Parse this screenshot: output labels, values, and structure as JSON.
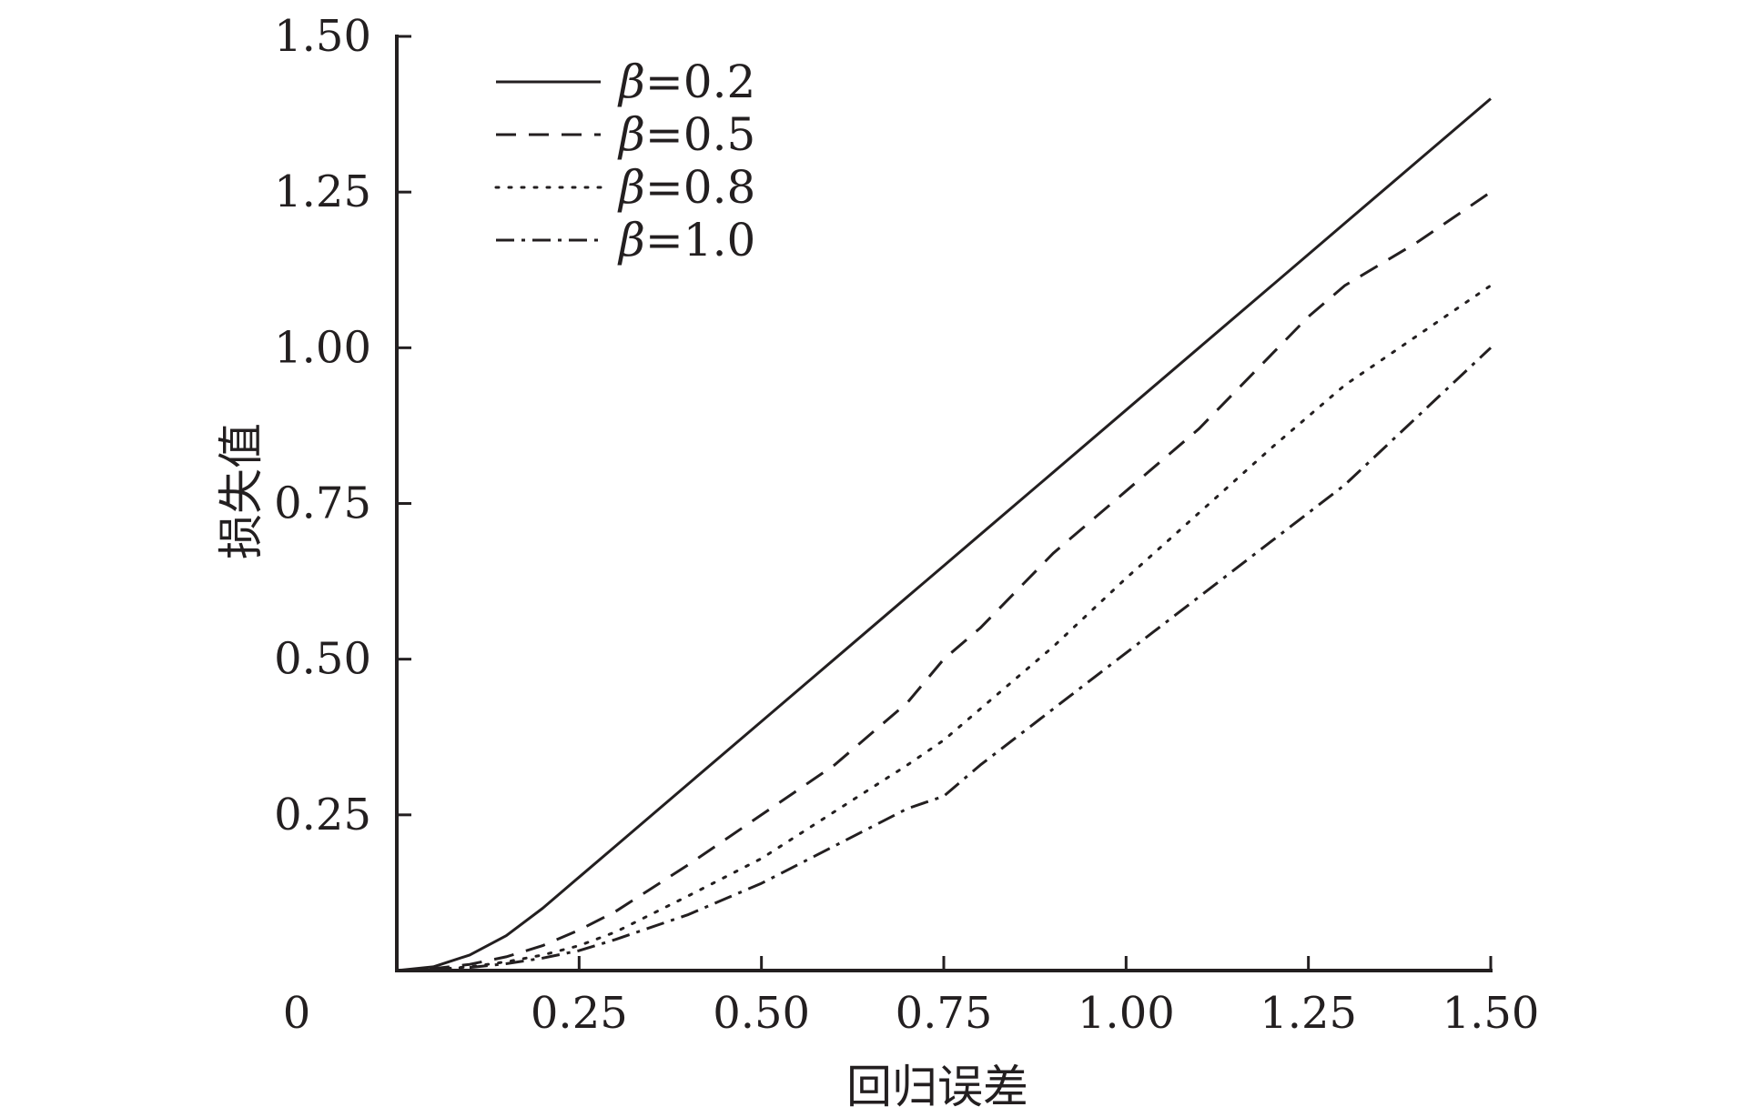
{
  "chart_data": {
    "type": "line",
    "title": "",
    "xlabel": "回归误差",
    "ylabel": "损失值",
    "xlim": [
      0,
      1.5
    ],
    "ylim": [
      0,
      1.5
    ],
    "origin_label": "0",
    "x_ticks": [
      0.25,
      0.5,
      0.75,
      1.0,
      1.25,
      1.5
    ],
    "x_tick_labels": [
      "0.25",
      "0.50",
      "0.75",
      "1.00",
      "1.25",
      "1.50"
    ],
    "y_ticks": [
      0.25,
      0.5,
      0.75,
      1.0,
      1.25,
      1.5
    ],
    "y_tick_labels": [
      "0.25",
      "0.50",
      "0.75",
      "1.00",
      "1.25",
      "1.50"
    ],
    "grid": false,
    "legend_position": "top-left",
    "x": [
      0,
      0.05,
      0.1,
      0.15,
      0.2,
      0.25,
      0.3,
      0.4,
      0.5,
      0.6,
      0.7,
      0.75,
      0.8,
      0.9,
      1.0,
      1.1,
      1.2,
      1.25,
      1.3,
      1.4,
      1.5
    ],
    "series": [
      {
        "legend_greek": "β",
        "legend_value": "=0.2",
        "line_style": "solid",
        "color": "#231f20",
        "values": [
          0,
          0.006,
          0.025,
          0.056,
          0.1,
          0.15,
          0.2,
          0.3,
          0.4,
          0.5,
          0.6,
          0.65,
          0.7,
          0.8,
          0.9,
          1.0,
          1.1,
          1.15,
          1.2,
          1.3,
          1.4
        ]
      },
      {
        "legend_greek": "β",
        "legend_value": "=0.5",
        "line_style": "dashed",
        "color": "#231f20",
        "values": [
          0,
          0.003,
          0.01,
          0.022,
          0.04,
          0.065,
          0.095,
          0.17,
          0.25,
          0.33,
          0.43,
          0.5,
          0.55,
          0.67,
          0.77,
          0.87,
          0.99,
          1.05,
          1.1,
          1.17,
          1.25
        ]
      },
      {
        "legend_greek": "β",
        "legend_value": "=0.8",
        "line_style": "dotted",
        "color": "#231f20",
        "values": [
          0,
          0.002,
          0.006,
          0.014,
          0.025,
          0.04,
          0.062,
          0.12,
          0.18,
          0.255,
          0.33,
          0.37,
          0.42,
          0.52,
          0.63,
          0.735,
          0.84,
          0.89,
          0.94,
          1.02,
          1.1
        ]
      },
      {
        "legend_greek": "β",
        "legend_value": "=1.0",
        "line_style": "dashdot",
        "color": "#231f20",
        "values": [
          0,
          0.001,
          0.005,
          0.011,
          0.02,
          0.032,
          0.05,
          0.09,
          0.14,
          0.2,
          0.26,
          0.28,
          0.33,
          0.42,
          0.51,
          0.6,
          0.69,
          0.735,
          0.78,
          0.89,
          1.0
        ]
      }
    ]
  }
}
